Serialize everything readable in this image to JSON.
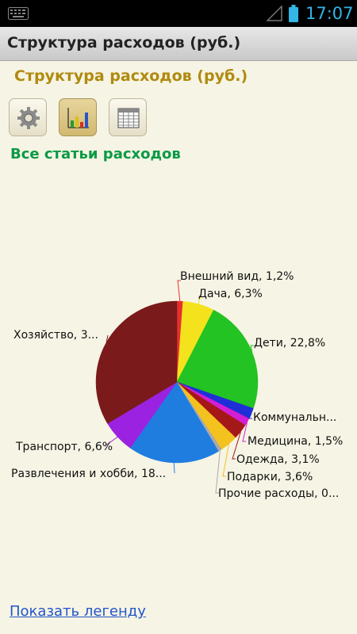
{
  "status_bar": {
    "time": "17:07"
  },
  "window": {
    "title": "Структура расходов (руб.)"
  },
  "page": {
    "heading": "Структура расходов (руб.)",
    "section_title": "Все статьи расходов",
    "legend_link": "Показать легенду"
  },
  "toolbar": {
    "buttons": [
      {
        "icon": "gear-icon",
        "active": false
      },
      {
        "icon": "bar-chart-icon",
        "active": true
      },
      {
        "icon": "table-grid-icon",
        "active": false
      }
    ]
  },
  "chart_data": {
    "type": "pie",
    "title": "",
    "series": [
      {
        "label": "Внешний вид, 1,2%",
        "value": 1.2,
        "color": "#e53030"
      },
      {
        "label": "Дача, 6,3%",
        "value": 6.3,
        "color": "#f4e21c"
      },
      {
        "label": "Дети, 22,8%",
        "value": 22.8,
        "color": "#22c322"
      },
      {
        "label": "Коммунальн...",
        "value": 2.2,
        "color": "#1f2fd6"
      },
      {
        "label": "Медицина, 1,5%",
        "value": 1.5,
        "color": "#d41ed4"
      },
      {
        "label": "Одежда, 3,1%",
        "value": 3.1,
        "color": "#a51818"
      },
      {
        "label": "Подарки, 3,6%",
        "value": 3.6,
        "color": "#f3c21e"
      },
      {
        "label": "Прочие расходы, 0...",
        "value": 0.7,
        "color": "#aaaaaa"
      },
      {
        "label": "Развлечения и хобби, 18...",
        "value": 18.4,
        "color": "#1f7de0"
      },
      {
        "label": "Транспорт, 6,6%",
        "value": 6.6,
        "color": "#9b22e0"
      },
      {
        "label": "Хозяйство, 3...",
        "value": 33.6,
        "color": "#7a1a1a"
      }
    ]
  }
}
